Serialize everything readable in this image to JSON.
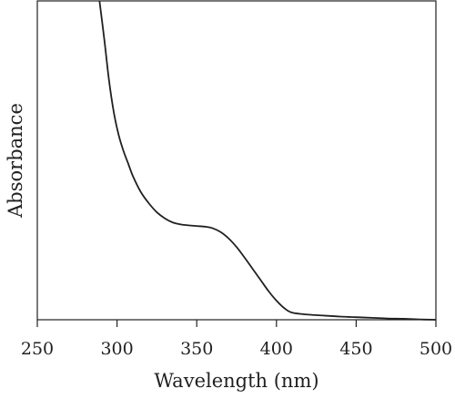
{
  "chart_data": {
    "type": "line",
    "title": "",
    "xlabel": "Wavelength (nm)",
    "ylabel": "Absorbance",
    "xlim": [
      250,
      500
    ],
    "ylim": [
      0,
      1
    ],
    "xticks": [
      "250",
      "300",
      "350",
      "400",
      "450",
      "500"
    ],
    "y_tick_labels_shown": false,
    "grid": false,
    "legend": "none",
    "line_color": "#231f20",
    "series": [
      {
        "x": [
          289,
          292,
          295,
          298,
          301,
          304,
          307,
          310,
          315,
          320,
          325,
          330,
          335,
          340,
          345,
          350,
          355,
          360,
          365,
          370,
          375,
          380,
          385,
          390,
          395,
          400,
          405,
          410,
          420,
          430,
          440,
          450,
          460,
          470,
          480,
          490,
          500
        ],
        "y": [
          1.0,
          0.88,
          0.75,
          0.65,
          0.58,
          0.53,
          0.49,
          0.45,
          0.4,
          0.365,
          0.337,
          0.318,
          0.305,
          0.299,
          0.296,
          0.294,
          0.292,
          0.287,
          0.275,
          0.255,
          0.228,
          0.195,
          0.16,
          0.125,
          0.09,
          0.06,
          0.036,
          0.022,
          0.016,
          0.013,
          0.01,
          0.008,
          0.006,
          0.004,
          0.003,
          0.001,
          0.0
        ]
      }
    ]
  }
}
